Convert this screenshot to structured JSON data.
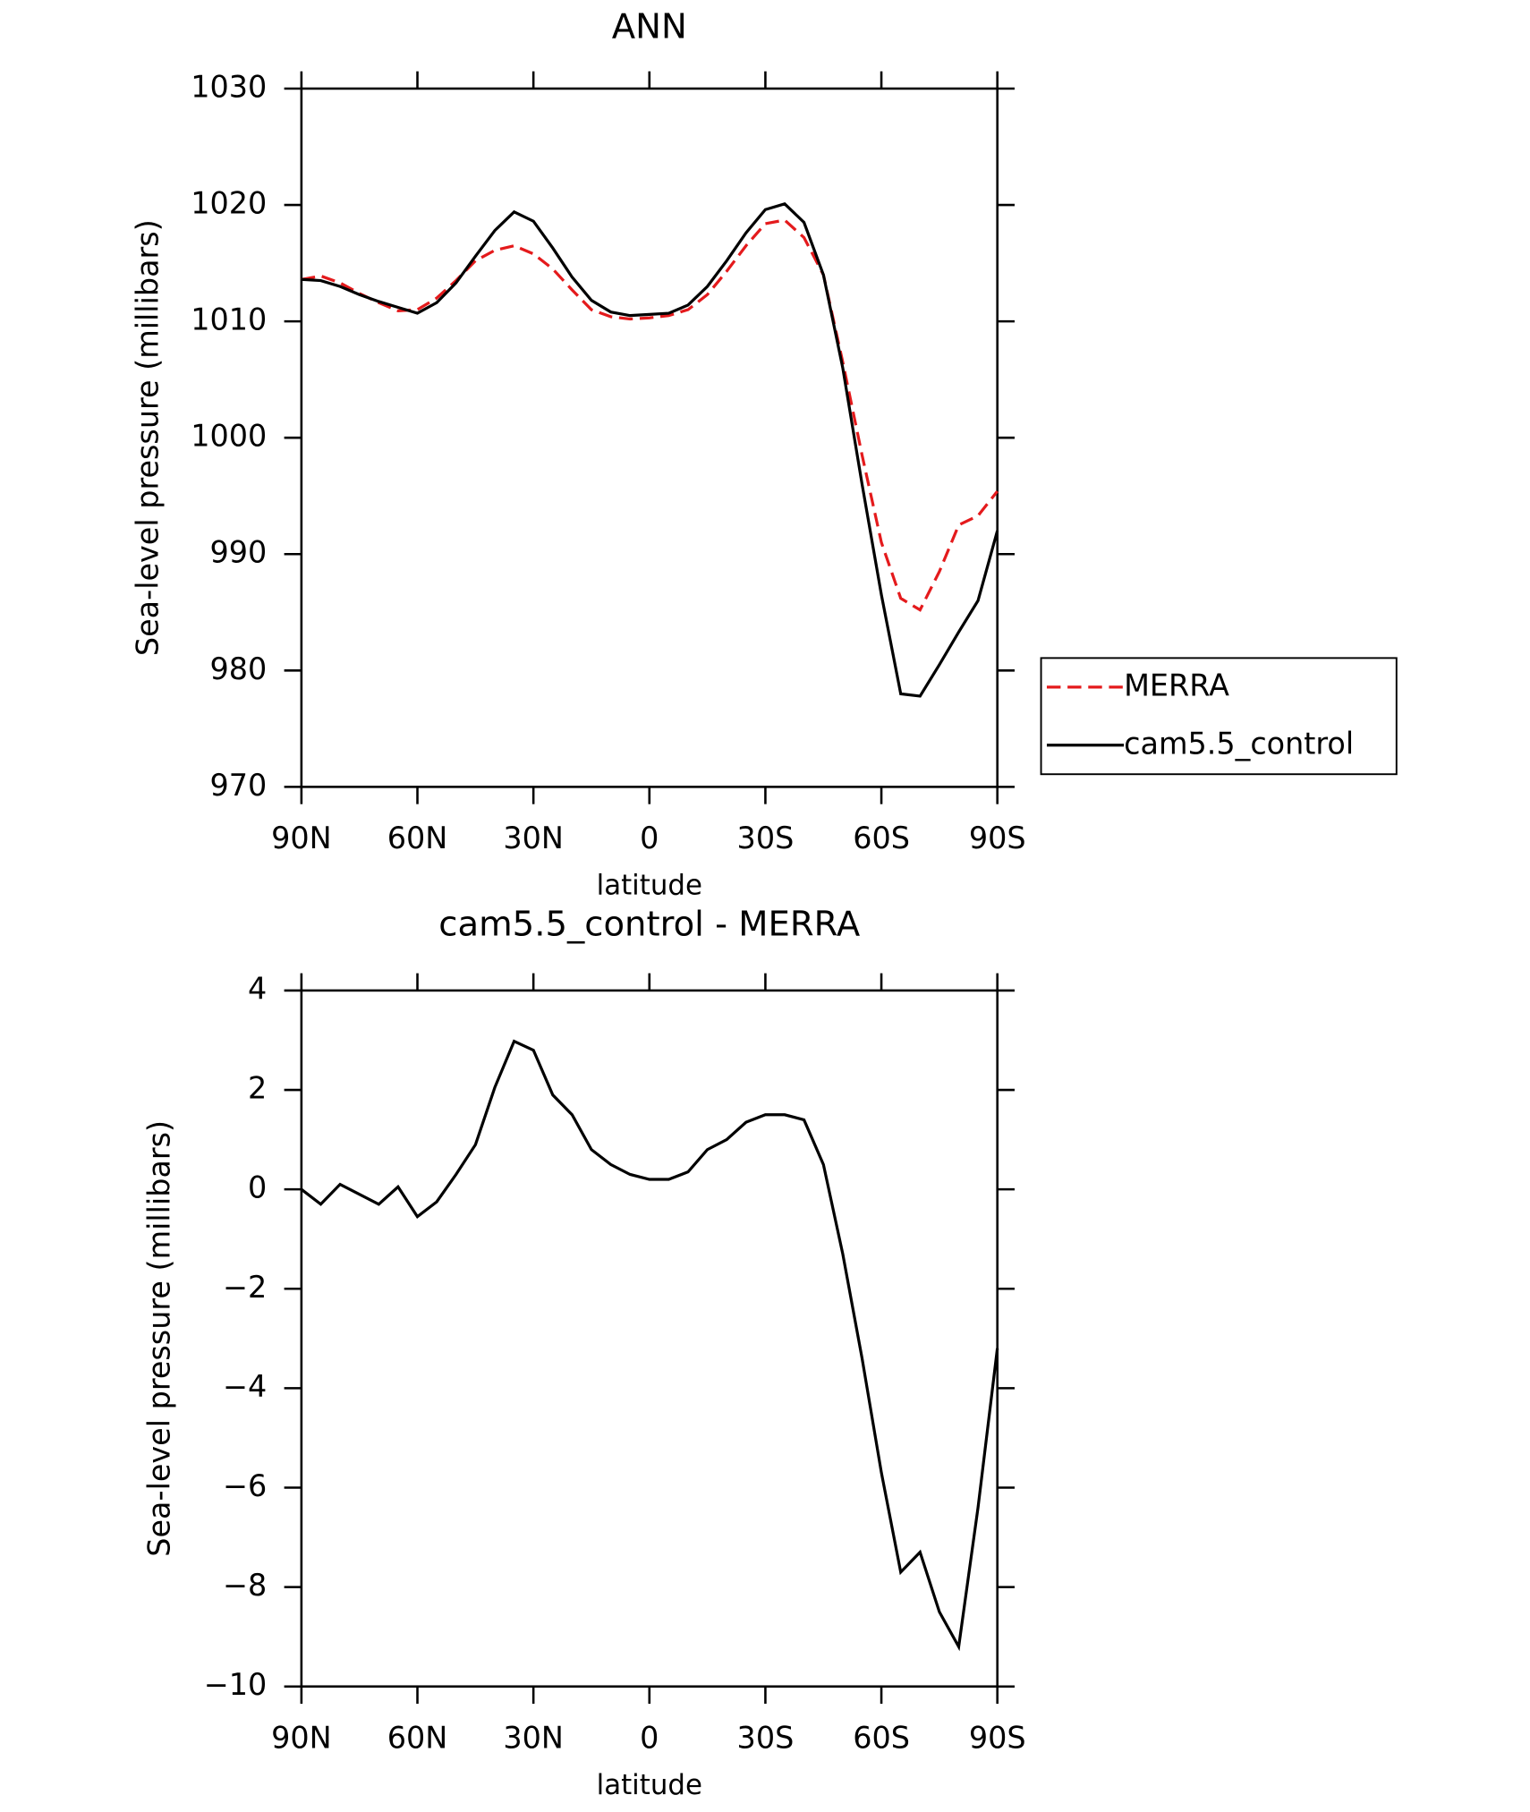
{
  "chart_data": [
    {
      "type": "line",
      "title": "ANN",
      "xlabel": "latitude",
      "ylabel": "Sea-level pressure (millibars)",
      "x": [
        90,
        85,
        80,
        75,
        70,
        65,
        60,
        55,
        50,
        45,
        40,
        35,
        30,
        25,
        20,
        15,
        10,
        5,
        0,
        -5,
        -10,
        -15,
        -20,
        -25,
        -30,
        -35,
        -40,
        -45,
        -50,
        -55,
        -60,
        -65,
        -70,
        -75,
        -80,
        -85,
        -90
      ],
      "xlim": [
        90,
        -90
      ],
      "xticks": [
        {
          "value": 90,
          "label": "90N"
        },
        {
          "value": 60,
          "label": "60N"
        },
        {
          "value": 30,
          "label": "30N"
        },
        0,
        {
          "value": -30,
          "label": "30S"
        },
        {
          "value": -60,
          "label": "60S"
        },
        {
          "value": -90,
          "label": "90S"
        }
      ],
      "ylim": [
        970,
        1030
      ],
      "yticks": [
        970,
        980,
        990,
        1000,
        1010,
        1020,
        1030
      ],
      "legend": "right",
      "series": [
        {
          "name": "MERRA",
          "color": "#e41a1c",
          "linestyle": "dashed",
          "values": [
            1013.6,
            1013.9,
            1013.3,
            1012.4,
            1011.6,
            1010.9,
            1011.0,
            1012.0,
            1013.5,
            1015.2,
            1016.1,
            1016.5,
            1015.8,
            1014.5,
            1012.7,
            1011.0,
            1010.4,
            1010.2,
            1010.3,
            1010.5,
            1011.0,
            1012.3,
            1014.3,
            1016.5,
            1018.4,
            1018.7,
            1017.2,
            1014.0,
            1006.5,
            998.5,
            991.0,
            986.2,
            985.2,
            988.5,
            992.5,
            993.3,
            995.4
          ]
        },
        {
          "name": "cam5.5_control",
          "color": "#000000",
          "linestyle": "solid",
          "values": [
            1013.6,
            1013.5,
            1013.0,
            1012.3,
            1011.7,
            1011.2,
            1010.7,
            1011.6,
            1013.3,
            1015.6,
            1017.8,
            1019.4,
            1018.6,
            1016.3,
            1013.8,
            1011.8,
            1010.8,
            1010.5,
            1010.6,
            1010.7,
            1011.4,
            1013.0,
            1015.2,
            1017.6,
            1019.6,
            1020.1,
            1018.5,
            1014.0,
            1006.0,
            996.0,
            986.5,
            978.0,
            977.8,
            980.5,
            983.3,
            986.0,
            992.0
          ]
        }
      ]
    },
    {
      "type": "line",
      "title": "cam5.5_control - MERRA",
      "xlabel": "latitude",
      "ylabel": "Sea-level pressure (millibars)",
      "x": [
        90,
        85,
        80,
        75,
        70,
        65,
        60,
        55,
        50,
        45,
        40,
        35,
        30,
        25,
        20,
        15,
        10,
        5,
        0,
        -5,
        -10,
        -15,
        -20,
        -25,
        -30,
        -35,
        -40,
        -45,
        -50,
        -55,
        -60,
        -65,
        -70,
        -75,
        -80,
        -85,
        -90
      ],
      "xlim": [
        90,
        -90
      ],
      "xticks": [
        {
          "value": 90,
          "label": "90N"
        },
        {
          "value": 60,
          "label": "60N"
        },
        {
          "value": 30,
          "label": "30N"
        },
        0,
        {
          "value": -30,
          "label": "30S"
        },
        {
          "value": -60,
          "label": "60S"
        },
        {
          "value": -90,
          "label": "90S"
        }
      ],
      "ylim": [
        -10,
        4
      ],
      "yticks": [
        {
          "value": -10,
          "label": "−10"
        },
        {
          "value": -8,
          "label": "−8"
        },
        {
          "value": -6,
          "label": "−6"
        },
        {
          "value": -4,
          "label": "−4"
        },
        {
          "value": -2,
          "label": "−2"
        },
        0,
        2,
        4
      ],
      "series": [
        {
          "color": "#000000",
          "linestyle": "solid",
          "values": [
            0.0,
            -0.3,
            0.1,
            -0.1,
            -0.3,
            0.05,
            -0.55,
            -0.25,
            0.3,
            0.9,
            2.05,
            2.98,
            2.8,
            1.9,
            1.5,
            0.8,
            0.5,
            0.3,
            0.2,
            0.2,
            0.35,
            0.8,
            1.0,
            1.35,
            1.5,
            1.5,
            1.4,
            0.5,
            -1.3,
            -3.4,
            -5.7,
            -7.7,
            -7.3,
            -8.5,
            -9.2,
            -6.4,
            -3.2
          ]
        }
      ]
    }
  ]
}
